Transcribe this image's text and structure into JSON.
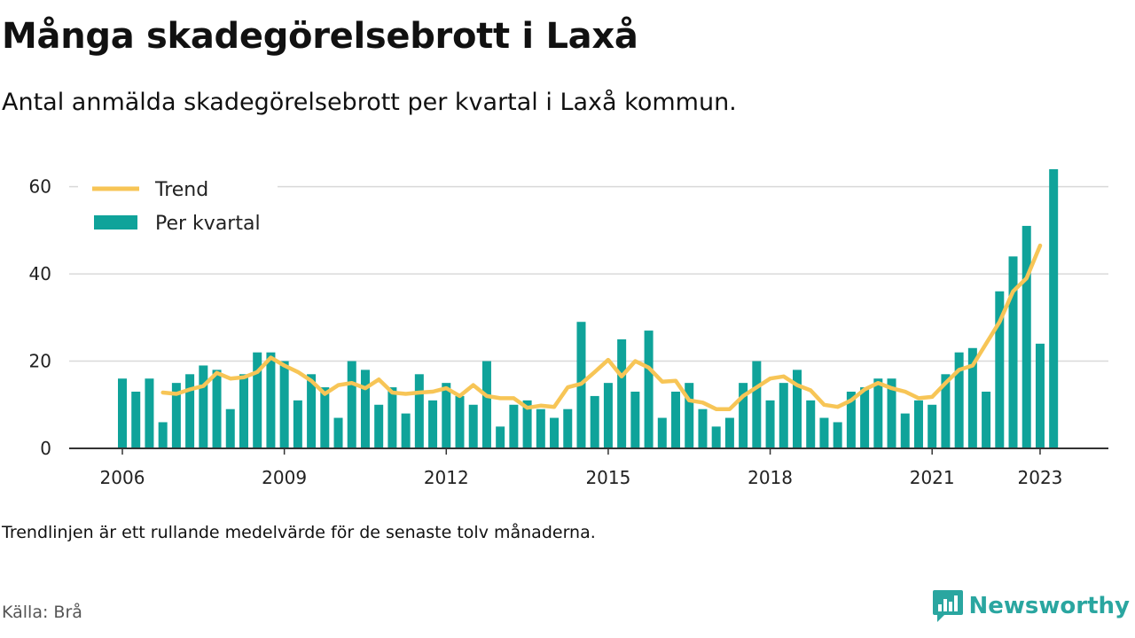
{
  "header": {
    "title": "Många skadegörelsebrott i Laxå",
    "subtitle": "Antal anmälda skadegörelsebrott per kvartal i Laxå kommun."
  },
  "footer": {
    "note": "Trendlinjen är ett rullande medelvärde för de senaste tolv månaderna.",
    "source": "Källa: Brå",
    "brand": "Newsworthy"
  },
  "colors": {
    "bar": "#0fa39a",
    "trend": "#f7c556",
    "grid": "#d9d9d9",
    "axis": "#333333",
    "brand": "#2aa6a0"
  },
  "icons": {
    "brand_logo": "bar-chart-speech-bubble-icon"
  },
  "chart_data": {
    "type": "bar",
    "title": "Många skadegörelsebrott i Laxå",
    "subtitle": "Antal anmälda skadegörelsebrott per kvartal i Laxå kommun.",
    "xlabel": "",
    "ylabel": "",
    "ylim": [
      0,
      65
    ],
    "y_ticks": [
      0,
      20,
      40,
      60
    ],
    "x_ticks": [
      {
        "label": "2006",
        "year": 2006
      },
      {
        "label": "2009",
        "year": 2009
      },
      {
        "label": "2012",
        "year": 2012
      },
      {
        "label": "2015",
        "year": 2015
      },
      {
        "label": "2018",
        "year": 2018
      },
      {
        "label": "2021",
        "year": 2021
      },
      {
        "label": "2023",
        "year": 2023
      }
    ],
    "start_year": 2006,
    "start_quarter": 1,
    "grid": true,
    "legend": {
      "position": "top-left",
      "entries": [
        {
          "name": "Trend",
          "type": "line"
        },
        {
          "name": "Per kvartal",
          "type": "bar"
        }
      ]
    },
    "series": [
      {
        "name": "Per kvartal",
        "type": "bar",
        "values": [
          16,
          13,
          16,
          6,
          15,
          17,
          19,
          18,
          9,
          17,
          22,
          22,
          20,
          11,
          17,
          14,
          7,
          20,
          18,
          10,
          14,
          8,
          17,
          11,
          15,
          12,
          10,
          20,
          5,
          10,
          11,
          9,
          7,
          9,
          29,
          12,
          15,
          25,
          13,
          27,
          7,
          13,
          15,
          9,
          5,
          7,
          15,
          20,
          11,
          15,
          18,
          11,
          7,
          6,
          13,
          14,
          16,
          16,
          8,
          11,
          10,
          17,
          22,
          23,
          13,
          36,
          44,
          51,
          24,
          64
        ]
      },
      {
        "name": "Trend",
        "type": "line",
        "start_index": 3,
        "values": [
          12.8,
          12.5,
          13.5,
          14.3,
          17.3,
          16.0,
          16.3,
          17.5,
          20.8,
          19.0,
          17.5,
          15.5,
          12.5,
          14.5,
          15.0,
          13.8,
          15.8,
          12.8,
          12.5,
          12.8,
          13.0,
          13.8,
          12.0,
          14.5,
          12.0,
          11.5,
          11.5,
          9.3,
          9.8,
          9.5,
          14.0,
          14.8,
          17.5,
          20.3,
          16.5,
          20.0,
          18.5,
          15.3,
          15.5,
          11.0,
          10.5,
          9.0,
          9.0,
          12.0,
          14.0,
          16.0,
          16.5,
          14.5,
          13.3,
          10.0,
          9.5,
          11.0,
          13.5,
          15.0,
          13.8,
          13.0,
          11.5,
          11.8,
          15.0,
          18.0,
          19.0,
          24.0,
          29.0,
          36.0,
          39.0,
          46.5
        ]
      }
    ]
  }
}
